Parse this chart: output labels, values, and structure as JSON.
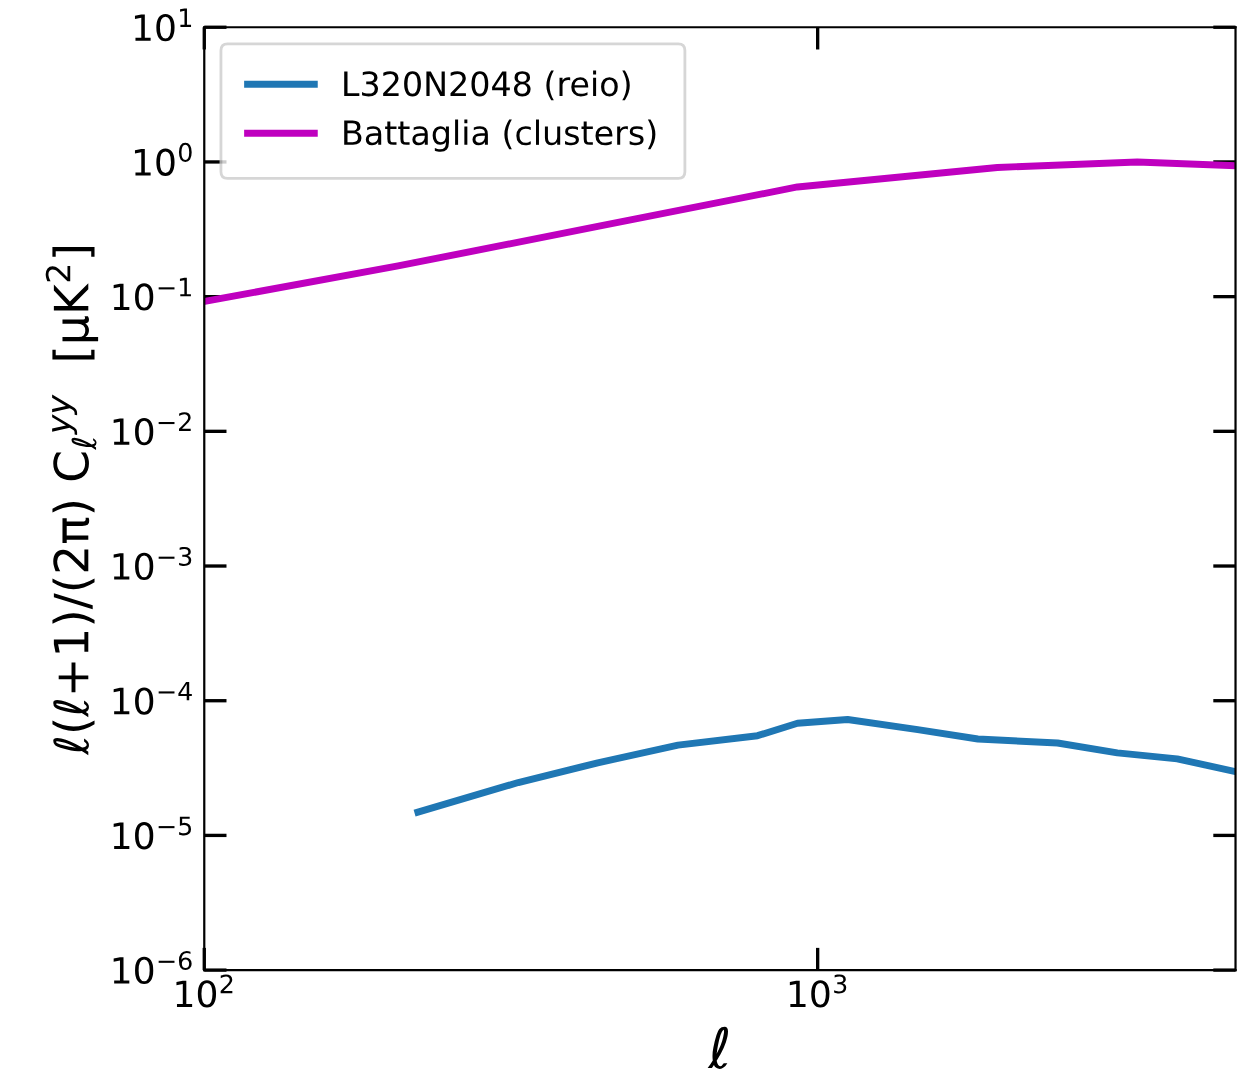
{
  "chart_data": {
    "type": "line",
    "xlabel": "ℓ",
    "ylabel": "ℓ(ℓ+1)/(2π) C$_{ℓ}$$^{yy}$  [μK$^{2}$]",
    "log": "xy",
    "legend": "top left",
    "grid": false,
    "xlim": [
      100,
      4800
    ],
    "xticks": [
      {
        "value": 100,
        "label": "10$^{2}$"
      },
      {
        "value": 1000,
        "label": "10$^{3}$"
      }
    ],
    "ylim": [
      1e-06,
      10
    ],
    "yticks": [
      {
        "value": 1e-06,
        "label": "10$^{−6}$"
      },
      {
        "value": 1e-05,
        "label": "10$^{−5}$"
      },
      {
        "value": 0.0001,
        "label": "10$^{−4}$"
      },
      {
        "value": 0.001,
        "label": "10$^{−3}$"
      },
      {
        "value": 0.01,
        "label": "10$^{−2}$"
      },
      {
        "value": 0.1,
        "label": "10$^{−1}$"
      },
      {
        "value": 1,
        "label": "10$^{0}$"
      },
      {
        "value": 10,
        "label": "10$^{1}$"
      }
    ],
    "series": [
      {
        "name": "L320N2048 (reio)",
        "color": "#1f77b4",
        "x": [
          223,
          325,
          438,
          592,
          798,
          927,
          1119,
          1456,
          1825,
          2461,
          3080,
          3856,
          4760
        ],
        "values": [
          1.49e-05,
          2.47e-05,
          3.46e-05,
          4.68e-05,
          5.5e-05,
          6.8e-05,
          7.26e-05,
          6.1e-05,
          5.2e-05,
          4.85e-05,
          4.1e-05,
          3.7e-05,
          3e-05
        ]
      },
      {
        "name": "Battaglia (clusters)",
        "color": "#bf00bf",
        "x": [
          100,
          207,
          438,
          927,
          1963,
          3319,
          4760
        ],
        "values": [
          0.092,
          0.169,
          0.332,
          0.652,
          0.91,
          1.0,
          0.94
        ]
      }
    ]
  }
}
